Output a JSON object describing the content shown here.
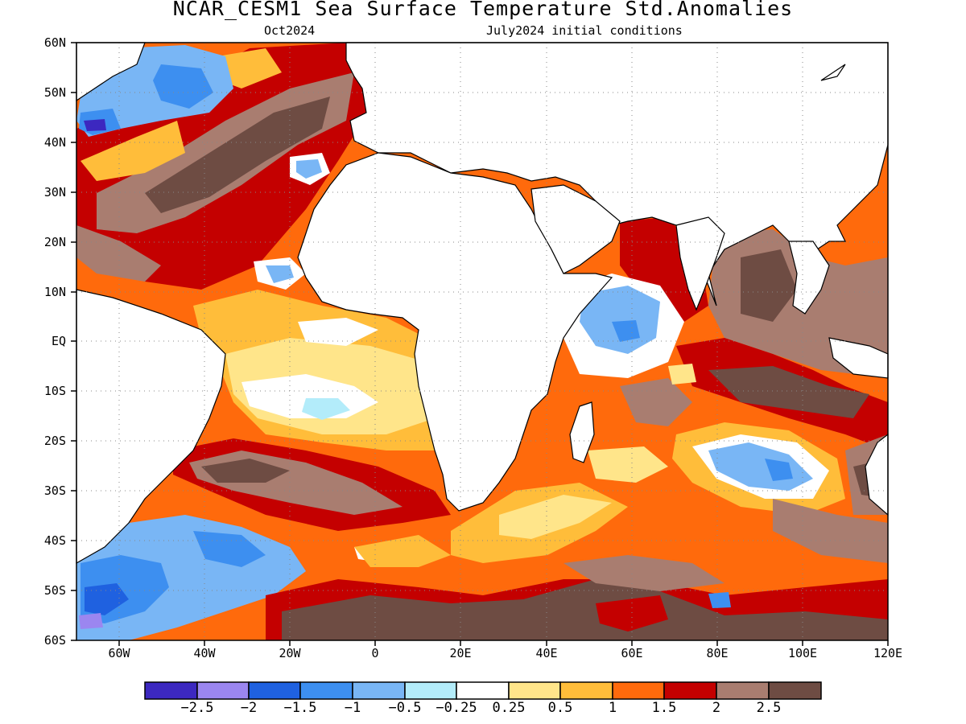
{
  "title": "NCAR_CESM1 Sea Surface Temperature Std.Anomalies",
  "subtitle_left": "Oct2024",
  "subtitle_right": "July2024 initial conditions",
  "lat_labels": [
    "60N",
    "50N",
    "40N",
    "30N",
    "20N",
    "10N",
    "EQ",
    "10S",
    "20S",
    "30S",
    "40S",
    "50S",
    "60S"
  ],
  "lon_labels": [
    "60W",
    "40W",
    "20W",
    "0",
    "20E",
    "40E",
    "60E",
    "80E",
    "100E",
    "120E"
  ],
  "colorbar": {
    "labels": [
      "-2.5",
      "-2",
      "-1.5",
      "-1",
      "-0.5",
      "-0.25",
      "0.25",
      "0.5",
      "1",
      "1.5",
      "2",
      "2.5"
    ],
    "colors": [
      "#3c28c0",
      "#9b86f0",
      "#1f61e0",
      "#3d8ff0",
      "#79b6f5",
      "#b3ecfa",
      "#ffffff",
      "#ffe58a",
      "#ffbd3a",
      "#ff6a0c",
      "#c40000",
      "#a97d70",
      "#6e4c43"
    ]
  },
  "chart_data": {
    "type": "heatmap",
    "title": "NCAR_CESM1 Sea Surface Temperature Std.Anomalies",
    "subtitle": [
      "Oct2024",
      "July2024 initial conditions"
    ],
    "x_range": [
      -70,
      120
    ],
    "y_range": [
      -60,
      60
    ],
    "x_ticks": [
      "60W",
      "40W",
      "20W",
      "0",
      "20E",
      "40E",
      "60E",
      "80E",
      "100E",
      "120E"
    ],
    "y_ticks": [
      "60N",
      "50N",
      "40N",
      "30N",
      "20N",
      "10N",
      "EQ",
      "10S",
      "20S",
      "30S",
      "40S",
      "50S",
      "60S"
    ],
    "levels": [
      -2.5,
      -2,
      -1.5,
      -1,
      -0.5,
      -0.25,
      0.25,
      0.5,
      1,
      1.5,
      2,
      2.5
    ],
    "grid": true,
    "regions": [
      {
        "area": "northwest Atlantic, off Newfoundland",
        "anomaly_approx": -2.0
      },
      {
        "area": "Atlantic between 60N-20N (broad)",
        "anomaly_approx": 2.0
      },
      {
        "area": "off Iberia / Morocco",
        "anomaly_approx": -1.0
      },
      {
        "area": "equatorial and tropical South Atlantic",
        "anomaly_approx": 0.25
      },
      {
        "area": "South Atlantic 40S-55S west",
        "anomaly_approx": -1.5
      },
      {
        "area": "Arabian Sea",
        "anomaly_approx": 2.0
      },
      {
        "area": "western Indian Ocean near Somalia",
        "anomaly_approx": -0.5
      },
      {
        "area": "Bay of Bengal",
        "anomaly_approx": 2.5
      },
      {
        "area": "southern Indian Ocean 20S-30S, 80E-100E",
        "anomaly_approx": -1.0
      },
      {
        "area": "Southern Ocean 45S-60S",
        "anomaly_approx": 2.5
      },
      {
        "area": "Mediterranean",
        "anomaly_approx": 1.5
      }
    ]
  }
}
